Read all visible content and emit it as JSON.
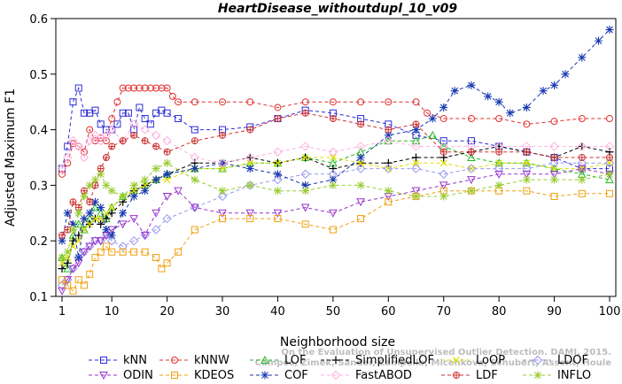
{
  "chart_data": {
    "type": "line",
    "title": "HeartDisease_withoutdupl_10_v09",
    "xlabel": "Neighborhood size",
    "ylabel": "Adjusted Maximum F1",
    "xlim": [
      1,
      100
    ],
    "ylim": [
      0.1,
      0.6
    ],
    "x_ticks": [
      1,
      10,
      20,
      30,
      40,
      50,
      60,
      70,
      80,
      90,
      100
    ],
    "y_ticks": [
      0.1,
      0.2,
      0.3,
      0.4,
      0.5,
      0.6
    ],
    "grid": false,
    "legend_position": "bottom",
    "credit": [
      "Campos, Zimek, Sander, Campello, Micenkova, Schubert, Assent, Houle",
      "On the Evaluation of Unsupervised Outlier Detection. DAMI, 2015."
    ],
    "series": [
      {
        "name": "kNN",
        "color": "#2d2dd6",
        "marker": "square",
        "x": [
          1,
          2,
          3,
          4,
          5,
          6,
          7,
          8,
          9,
          10,
          11,
          12,
          13,
          14,
          15,
          16,
          17,
          18,
          19,
          20,
          22,
          25,
          30,
          35,
          40,
          45,
          50,
          55,
          60,
          65,
          70,
          75,
          80,
          85,
          90,
          95,
          100
        ],
        "y": [
          0.33,
          0.37,
          0.45,
          0.475,
          0.43,
          0.43,
          0.435,
          0.41,
          0.4,
          0.4,
          0.41,
          0.43,
          0.43,
          0.4,
          0.44,
          0.42,
          0.41,
          0.43,
          0.435,
          0.43,
          0.42,
          0.4,
          0.4,
          0.405,
          0.42,
          0.435,
          0.43,
          0.42,
          0.41,
          0.39,
          0.38,
          0.38,
          0.37,
          0.36,
          0.35,
          0.33,
          0.33
        ]
      },
      {
        "name": "kNNW",
        "color": "#e03030",
        "marker": "circle",
        "x": [
          1,
          2,
          3,
          4,
          5,
          6,
          7,
          8,
          9,
          10,
          11,
          12,
          13,
          14,
          15,
          16,
          17,
          18,
          19,
          20,
          21,
          22,
          25,
          30,
          35,
          40,
          45,
          50,
          55,
          60,
          65,
          67,
          70,
          75,
          80,
          85,
          90,
          95,
          100
        ],
        "y": [
          0.32,
          0.34,
          0.375,
          0.37,
          0.36,
          0.4,
          0.38,
          0.385,
          0.38,
          0.42,
          0.45,
          0.475,
          0.475,
          0.475,
          0.475,
          0.475,
          0.475,
          0.475,
          0.475,
          0.475,
          0.46,
          0.45,
          0.45,
          0.45,
          0.45,
          0.44,
          0.45,
          0.45,
          0.45,
          0.45,
          0.45,
          0.43,
          0.42,
          0.42,
          0.42,
          0.41,
          0.415,
          0.42,
          0.42
        ]
      },
      {
        "name": "LOF",
        "color": "#22bb22",
        "marker": "triangle",
        "x": [
          1,
          2,
          3,
          4,
          5,
          6,
          7,
          8,
          9,
          10,
          12,
          14,
          16,
          18,
          20,
          25,
          30,
          35,
          40,
          45,
          50,
          55,
          60,
          65,
          68,
          70,
          75,
          80,
          85,
          90,
          95,
          100
        ],
        "y": [
          0.17,
          0.15,
          0.21,
          0.23,
          0.22,
          0.24,
          0.26,
          0.25,
          0.24,
          0.26,
          0.28,
          0.29,
          0.3,
          0.31,
          0.32,
          0.33,
          0.33,
          0.34,
          0.34,
          0.35,
          0.34,
          0.36,
          0.38,
          0.38,
          0.39,
          0.37,
          0.35,
          0.34,
          0.34,
          0.33,
          0.32,
          0.31
        ]
      },
      {
        "name": "SimplifiedLOF",
        "color": "#000000",
        "marker": "plus",
        "x": [
          1,
          2,
          3,
          4,
          5,
          6,
          7,
          8,
          9,
          10,
          12,
          14,
          16,
          18,
          20,
          25,
          30,
          35,
          40,
          45,
          50,
          55,
          60,
          65,
          70,
          75,
          80,
          85,
          90,
          95,
          100
        ],
        "y": [
          0.15,
          0.16,
          0.2,
          0.21,
          0.24,
          0.23,
          0.24,
          0.23,
          0.24,
          0.25,
          0.27,
          0.29,
          0.3,
          0.31,
          0.32,
          0.34,
          0.34,
          0.35,
          0.34,
          0.35,
          0.33,
          0.34,
          0.34,
          0.35,
          0.35,
          0.36,
          0.37,
          0.36,
          0.35,
          0.37,
          0.36
        ]
      },
      {
        "name": "LoOP",
        "color": "#dddd00",
        "marker": "cross",
        "x": [
          1,
          2,
          3,
          4,
          5,
          6,
          7,
          8,
          9,
          10,
          12,
          14,
          16,
          18,
          20,
          25,
          30,
          35,
          40,
          45,
          50,
          55,
          60,
          65,
          70,
          75,
          80,
          85,
          90,
          95,
          100
        ],
        "y": [
          0.16,
          0.17,
          0.19,
          0.2,
          0.22,
          0.23,
          0.24,
          0.24,
          0.25,
          0.26,
          0.28,
          0.29,
          0.3,
          0.31,
          0.31,
          0.33,
          0.33,
          0.34,
          0.34,
          0.35,
          0.35,
          0.34,
          0.33,
          0.34,
          0.34,
          0.33,
          0.34,
          0.34,
          0.33,
          0.33,
          0.34
        ]
      },
      {
        "name": "LDOF",
        "color": "#9999ee",
        "marker": "diamond",
        "x": [
          1,
          2,
          3,
          4,
          5,
          6,
          7,
          8,
          9,
          10,
          12,
          14,
          16,
          18,
          20,
          25,
          30,
          35,
          40,
          45,
          50,
          55,
          60,
          65,
          70,
          75,
          80,
          85,
          90,
          95,
          100
        ],
        "y": [
          0.12,
          0.13,
          0.15,
          0.17,
          0.18,
          0.19,
          0.2,
          0.2,
          0.21,
          0.2,
          0.19,
          0.2,
          0.21,
          0.22,
          0.24,
          0.26,
          0.28,
          0.3,
          0.31,
          0.32,
          0.32,
          0.33,
          0.33,
          0.33,
          0.32,
          0.33,
          0.33,
          0.33,
          0.34,
          0.34,
          0.34
        ]
      },
      {
        "name": "ODIN",
        "color": "#9933cc",
        "marker": "triangle-down",
        "x": [
          1,
          2,
          3,
          4,
          5,
          6,
          7,
          8,
          9,
          10,
          12,
          14,
          16,
          18,
          20,
          22,
          25,
          30,
          35,
          40,
          45,
          50,
          55,
          60,
          65,
          70,
          75,
          80,
          85,
          90,
          95,
          100
        ],
        "y": [
          0.11,
          0.13,
          0.15,
          0.16,
          0.18,
          0.19,
          0.2,
          0.2,
          0.21,
          0.22,
          0.23,
          0.24,
          0.21,
          0.25,
          0.28,
          0.29,
          0.26,
          0.25,
          0.25,
          0.25,
          0.26,
          0.25,
          0.27,
          0.28,
          0.29,
          0.3,
          0.31,
          0.32,
          0.32,
          0.32,
          0.33,
          0.32
        ]
      },
      {
        "name": "KDEOS",
        "color": "#f0a010",
        "marker": "square",
        "x": [
          1,
          2,
          3,
          4,
          5,
          6,
          7,
          8,
          9,
          10,
          12,
          14,
          16,
          18,
          19,
          20,
          22,
          25,
          30,
          35,
          40,
          45,
          50,
          55,
          60,
          65,
          70,
          75,
          80,
          85,
          90,
          95,
          100
        ],
        "y": [
          0.13,
          0.12,
          0.11,
          0.13,
          0.12,
          0.14,
          0.17,
          0.18,
          0.19,
          0.18,
          0.18,
          0.18,
          0.18,
          0.17,
          0.15,
          0.16,
          0.18,
          0.22,
          0.24,
          0.24,
          0.24,
          0.23,
          0.22,
          0.24,
          0.27,
          0.28,
          0.29,
          0.29,
          0.29,
          0.29,
          0.28,
          0.285,
          0.285
        ]
      },
      {
        "name": "COF",
        "color": "#1a3ab0",
        "marker": "asterisk",
        "x": [
          1,
          2,
          3,
          4,
          5,
          6,
          7,
          8,
          9,
          10,
          12,
          14,
          16,
          18,
          20,
          25,
          30,
          35,
          40,
          45,
          50,
          55,
          60,
          65,
          68,
          70,
          72,
          75,
          78,
          80,
          82,
          85,
          88,
          90,
          92,
          95,
          98,
          100
        ],
        "y": [
          0.2,
          0.25,
          0.23,
          0.17,
          0.24,
          0.25,
          0.27,
          0.26,
          0.22,
          0.21,
          0.25,
          0.28,
          0.29,
          0.31,
          0.32,
          0.33,
          0.34,
          0.33,
          0.32,
          0.3,
          0.31,
          0.35,
          0.39,
          0.4,
          0.42,
          0.44,
          0.47,
          0.48,
          0.46,
          0.45,
          0.43,
          0.44,
          0.47,
          0.48,
          0.5,
          0.53,
          0.56,
          0.58
        ]
      },
      {
        "name": "FastABOD",
        "color": "#ffb0e0",
        "marker": "diamond",
        "x": [
          1,
          2,
          3,
          4,
          5,
          6,
          7,
          8,
          9,
          10,
          12,
          14,
          16,
          18,
          20,
          25,
          30,
          35,
          40,
          45,
          50,
          55,
          60,
          65,
          70,
          75,
          80,
          85,
          90,
          95,
          100
        ],
        "y": [
          0.33,
          0.35,
          0.38,
          0.37,
          0.35,
          0.38,
          0.39,
          0.38,
          0.39,
          0.4,
          0.38,
          0.41,
          0.4,
          0.39,
          0.38,
          0.35,
          0.34,
          0.35,
          0.36,
          0.37,
          0.36,
          0.37,
          0.38,
          0.37,
          0.37,
          0.37,
          0.37,
          0.37,
          0.37,
          0.37,
          0.37
        ]
      },
      {
        "name": "LDF",
        "color": "#cc3333",
        "marker": "circle-plus",
        "x": [
          1,
          2,
          3,
          4,
          5,
          6,
          7,
          8,
          9,
          10,
          12,
          14,
          16,
          18,
          20,
          25,
          30,
          35,
          40,
          45,
          50,
          55,
          60,
          65,
          70,
          75,
          80,
          85,
          90,
          95,
          100
        ],
        "y": [
          0.21,
          0.22,
          0.27,
          0.26,
          0.29,
          0.27,
          0.3,
          0.33,
          0.35,
          0.37,
          0.38,
          0.39,
          0.38,
          0.37,
          0.36,
          0.38,
          0.39,
          0.4,
          0.42,
          0.43,
          0.42,
          0.41,
          0.4,
          0.41,
          0.36,
          0.36,
          0.36,
          0.36,
          0.35,
          0.35,
          0.35
        ]
      },
      {
        "name": "INFLO",
        "color": "#99cc33",
        "marker": "asterisk",
        "x": [
          1,
          2,
          3,
          4,
          5,
          6,
          7,
          8,
          9,
          10,
          12,
          14,
          16,
          18,
          20,
          25,
          30,
          35,
          40,
          45,
          50,
          55,
          60,
          65,
          70,
          75,
          80,
          85,
          90,
          95,
          100
        ],
        "y": [
          0.17,
          0.18,
          0.22,
          0.25,
          0.28,
          0.3,
          0.31,
          0.32,
          0.3,
          0.29,
          0.28,
          0.3,
          0.31,
          0.33,
          0.34,
          0.31,
          0.29,
          0.3,
          0.29,
          0.29,
          0.3,
          0.3,
          0.29,
          0.28,
          0.28,
          0.29,
          0.3,
          0.31,
          0.31,
          0.31,
          0.32
        ]
      }
    ]
  }
}
